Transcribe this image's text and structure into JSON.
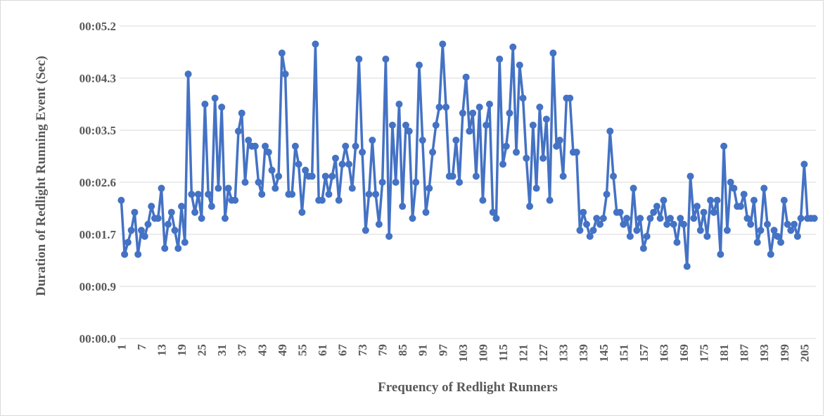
{
  "chart_data": {
    "type": "line",
    "xlabel": "Frequency of Redlight Runners",
    "ylabel": "Duration of Redlight Running Event (Sec)",
    "categories": [
      1,
      null,
      null,
      null,
      null,
      null,
      7,
      null,
      null,
      null,
      null,
      null,
      13,
      null,
      null,
      null,
      null,
      null,
      19,
      null,
      null,
      null,
      null,
      null,
      25,
      null,
      null,
      null,
      null,
      null,
      31,
      null,
      null,
      null,
      null,
      null,
      37,
      null,
      null,
      null,
      null,
      null,
      43,
      null,
      null,
      null,
      null,
      null,
      49,
      null,
      null,
      null,
      null,
      null,
      55,
      null,
      null,
      null,
      null,
      null,
      61,
      null,
      null,
      null,
      null,
      null,
      67,
      null,
      null,
      null,
      null,
      null,
      73,
      null,
      null,
      null,
      null,
      null,
      79,
      null,
      null,
      null,
      null,
      null,
      85,
      null,
      null,
      null,
      null,
      null,
      91,
      null,
      null,
      null,
      null,
      null,
      97,
      null,
      null,
      null,
      null,
      null,
      103,
      null,
      null,
      null,
      null,
      null,
      109,
      null,
      null,
      null,
      null,
      null,
      115,
      null,
      null,
      null,
      null,
      null,
      121,
      null,
      null,
      null,
      null,
      null,
      127,
      null,
      null,
      null,
      null,
      null,
      133,
      null,
      null,
      null,
      null,
      null,
      139,
      null,
      null,
      null,
      null,
      null,
      145,
      null,
      null,
      null,
      null,
      null,
      151,
      null,
      null,
      null,
      null,
      null,
      157,
      null,
      null,
      null,
      null,
      null,
      163,
      null,
      null,
      null,
      null,
      null,
      169,
      null,
      null,
      null,
      null,
      null,
      175,
      null,
      null,
      null,
      null,
      null,
      181,
      null,
      null,
      null,
      null,
      null,
      187,
      null,
      null,
      null,
      null,
      null,
      193,
      null,
      null,
      null,
      null,
      null,
      199,
      null,
      null,
      null,
      null,
      null,
      205,
      null,
      null,
      null
    ],
    "series": [
      {
        "color": "#4472c4",
        "values": [
          2.3,
          1.4,
          1.6,
          1.8,
          2.1,
          1.4,
          1.8,
          1.7,
          1.9,
          2.2,
          2.0,
          2.0,
          2.5,
          1.5,
          1.9,
          2.1,
          1.8,
          1.5,
          2.2,
          1.6,
          4.4,
          2.4,
          2.1,
          2.4,
          2.0,
          3.9,
          2.4,
          2.2,
          4.0,
          2.5,
          3.85,
          2.0,
          2.5,
          2.3,
          2.3,
          3.45,
          3.75,
          2.6,
          3.3,
          3.2,
          3.2,
          2.6,
          2.4,
          3.2,
          3.1,
          2.8,
          2.5,
          2.7,
          4.75,
          4.4,
          2.4,
          2.4,
          3.2,
          2.9,
          2.1,
          2.8,
          2.7,
          2.7,
          4.9,
          2.3,
          2.3,
          2.7,
          2.4,
          2.7,
          3.0,
          2.3,
          2.9,
          3.2,
          2.9,
          2.5,
          3.2,
          4.65,
          3.1,
          1.8,
          2.4,
          3.3,
          2.4,
          1.9,
          2.6,
          4.65,
          1.7,
          3.55,
          2.6,
          3.9,
          2.2,
          3.55,
          3.45,
          2.0,
          2.6,
          4.55,
          3.3,
          2.1,
          2.5,
          3.1,
          3.55,
          3.85,
          4.9,
          3.85,
          2.7,
          2.7,
          3.3,
          2.6,
          3.75,
          4.35,
          3.45,
          3.75,
          2.7,
          3.85,
          2.3,
          3.55,
          3.9,
          2.1,
          2.0,
          4.65,
          2.9,
          3.2,
          3.75,
          4.85,
          3.1,
          4.55,
          4.0,
          3.0,
          2.2,
          3.55,
          2.5,
          3.85,
          3.0,
          3.65,
          2.3,
          4.75,
          3.2,
          3.3,
          2.7,
          4.0,
          4.0,
          3.1,
          3.1,
          1.8,
          2.1,
          1.9,
          1.7,
          1.8,
          2.0,
          1.9,
          2.0,
          2.4,
          3.45,
          2.7,
          2.1,
          2.1,
          1.9,
          2.0,
          1.7,
          2.5,
          1.8,
          2.0,
          1.5,
          1.7,
          2.0,
          2.1,
          2.2,
          2.0,
          2.3,
          1.9,
          2.0,
          1.9,
          1.6,
          2.0,
          1.9,
          1.2,
          2.7,
          2.0,
          2.2,
          1.8,
          2.1,
          1.7,
          2.3,
          2.1,
          2.3,
          1.4,
          3.2,
          1.8,
          2.6,
          2.5,
          2.2,
          2.2,
          2.4,
          2.0,
          1.9,
          2.3,
          1.6,
          1.8,
          2.5,
          1.9,
          1.4,
          1.8,
          1.7,
          1.6,
          2.3,
          1.9,
          1.8,
          1.9,
          1.7,
          2.0,
          2.9,
          2.0,
          2.0,
          2.0
        ]
      }
    ],
    "ylim": [
      0,
      5.2
    ],
    "yticks": [
      {
        "value": 0,
        "label": "00:00.0"
      },
      {
        "value": 0.8667,
        "label": "00:00.9"
      },
      {
        "value": 1.7333,
        "label": "00:01.7"
      },
      {
        "value": 2.6,
        "label": "00:02.6"
      },
      {
        "value": 3.4667,
        "label": "00:03.5"
      },
      {
        "value": 4.3333,
        "label": "00:04.3"
      },
      {
        "value": 5.2,
        "label": "00:05.2"
      }
    ],
    "grid": true
  }
}
